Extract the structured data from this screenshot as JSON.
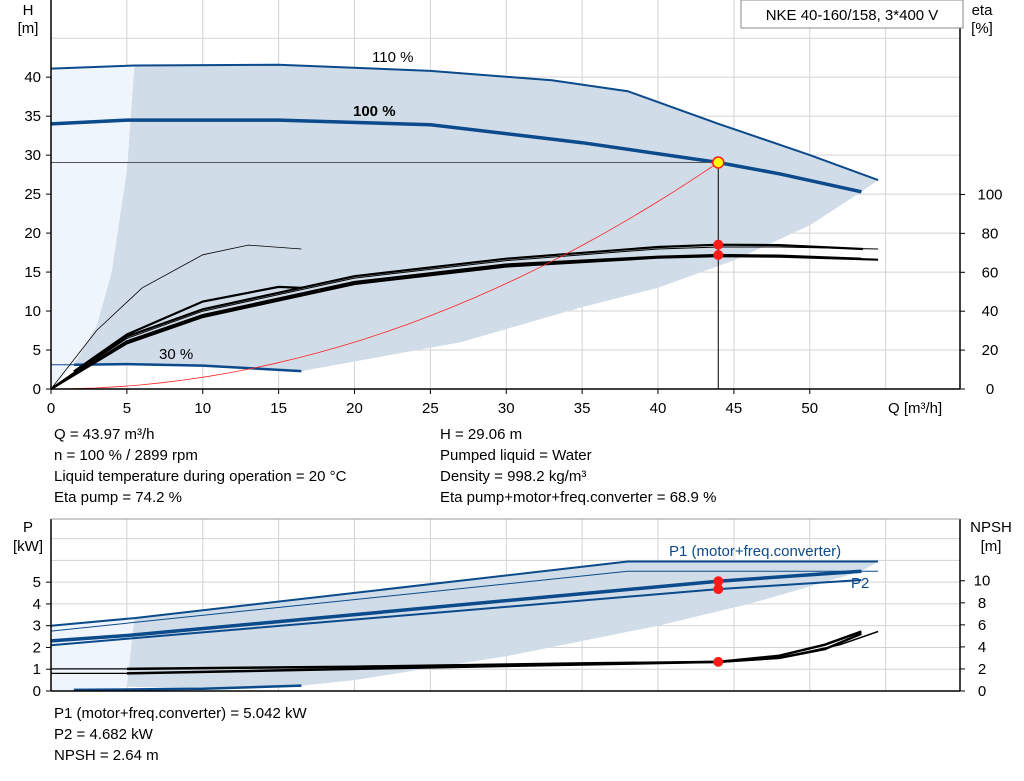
{
  "title": "NKE 40-160/158, 3*400 V",
  "colors": {
    "curve": "#0b4a8b",
    "shade": "#d0dce7",
    "light_shade": "#eef5fc",
    "system": "#ff2020",
    "point": "#ff1a1a",
    "op_fill": "#ffff00",
    "grid": "#d3d3d3"
  },
  "chart_data": [
    {
      "type": "line",
      "name": "head-efficiency",
      "xlabel": "Q [m³/h]",
      "ylabel_line1": "H",
      "ylabel_line2": "[m]",
      "y2label_line1": "eta",
      "y2label_line2": "[%]",
      "xlim": [
        0,
        59.9
      ],
      "ylim": [
        0,
        49.9
      ],
      "y2lim": [
        0,
        200
      ],
      "xticks": [
        0,
        5,
        10,
        15,
        20,
        25,
        30,
        35,
        40,
        45,
        50
      ],
      "yticks": [
        0,
        5,
        10,
        15,
        20,
        25,
        30,
        35,
        40
      ],
      "y2ticks": [
        0,
        20,
        40,
        60,
        80,
        100
      ],
      "grid": true,
      "curve_labels": {
        "c110": "110 %",
        "c100": "100 %",
        "c30": "30 %"
      },
      "head_curves": [
        {
          "label": "110 %",
          "width": 2,
          "points": [
            [
              0,
              41.1
            ],
            [
              5.5,
              41.5
            ],
            [
              15,
              41.6
            ],
            [
              25,
              40.8
            ],
            [
              33,
              39.6
            ],
            [
              38,
              38.2
            ],
            [
              44,
              34
            ],
            [
              50,
              30
            ],
            [
              54.5,
              26.8
            ]
          ]
        },
        {
          "label": "100 %",
          "width": 3.5,
          "points": [
            [
              0,
              34
            ],
            [
              5,
              34.5
            ],
            [
              15,
              34.5
            ],
            [
              25,
              33.9
            ],
            [
              35,
              31.6
            ],
            [
              43.97,
              29.06
            ],
            [
              48,
              27.6
            ],
            [
              53.4,
              25.3
            ]
          ]
        },
        {
          "label": "30 %",
          "width": 2.5,
          "points": [
            [
              1.5,
              3.1
            ],
            [
              5,
              3.2
            ],
            [
              10,
              3.0
            ],
            [
              16.5,
              2.3
            ]
          ]
        }
      ],
      "thin_edges": [
        [
          [
            0,
            41.1
          ],
          [
            5.5,
            41.5
          ]
        ],
        [
          [
            0,
            34
          ],
          [
            5,
            34.5
          ]
        ],
        [
          [
            0,
            3.1
          ],
          [
            1.5,
            3.1
          ]
        ]
      ],
      "shaded_region": [
        [
          5.5,
          41.5
        ],
        [
          15,
          41.6
        ],
        [
          25,
          40.8
        ],
        [
          33,
          39.6
        ],
        [
          38,
          38.2
        ],
        [
          44,
          34
        ],
        [
          50,
          30
        ],
        [
          54.5,
          26.8
        ],
        [
          53.4,
          25.3
        ],
        [
          50,
          21
        ],
        [
          45,
          16.5
        ],
        [
          40,
          13
        ],
        [
          35,
          10.5
        ],
        [
          27,
          6
        ],
        [
          16.5,
          2.3
        ],
        [
          10,
          3.0
        ],
        [
          1.5,
          3.1
        ],
        [
          3,
          8
        ],
        [
          4,
          15
        ],
        [
          5,
          28
        ],
        [
          5.5,
          41.5
        ]
      ],
      "light_region": [
        [
          0,
          0
        ],
        [
          0,
          41.1
        ],
        [
          5.5,
          41.5
        ],
        [
          5,
          28
        ],
        [
          4,
          15
        ],
        [
          3,
          8
        ],
        [
          1.5,
          3.1
        ],
        [
          0,
          0
        ]
      ],
      "efficiency_curves": [
        {
          "width": 2.2,
          "points": [
            [
              0,
              0
            ],
            [
              5,
              27
            ],
            [
              10,
              41
            ],
            [
              20,
              58
            ],
            [
              30,
              67
            ],
            [
              40,
              73
            ],
            [
              43.97,
              74.2
            ],
            [
              48,
              74
            ],
            [
              53.5,
              72
            ]
          ]
        },
        {
          "width": 1,
          "points": [
            [
              0,
              0
            ],
            [
              5,
              26
            ],
            [
              10,
              40
            ],
            [
              20,
              57
            ],
            [
              30,
              66
            ],
            [
              40,
              72
            ],
            [
              43.97,
              73
            ],
            [
              48,
              73
            ],
            [
              54.5,
              72
            ]
          ]
        },
        {
          "width": 2.2,
          "points": [
            [
              0,
              0
            ],
            [
              5,
              24.5
            ],
            [
              10,
              38
            ],
            [
              20,
              55
            ],
            [
              30,
              64
            ],
            [
              40,
              68
            ],
            [
              43.97,
              68.9
            ],
            [
              48,
              68.6
            ],
            [
              53.4,
              67
            ]
          ]
        },
        {
          "width": 2.2,
          "points": [
            [
              0,
              0
            ],
            [
              5,
              23.5
            ],
            [
              10,
              37
            ],
            [
              20,
              54
            ],
            [
              30,
              63
            ],
            [
              40,
              67.5
            ],
            [
              43.97,
              68.3
            ],
            [
              48,
              68
            ],
            [
              54.5,
              66.5
            ]
          ]
        },
        {
          "width": 2.2,
          "points": [
            [
              1.5,
              9
            ],
            [
              5,
              28
            ],
            [
              10,
              45
            ],
            [
              15,
              52.5
            ],
            [
              16.5,
              52
            ]
          ]
        },
        {
          "width": 0.8,
          "points": [
            [
              0,
              0
            ],
            [
              3,
              30
            ],
            [
              6,
              52
            ],
            [
              10,
              69
            ],
            [
              13,
              74
            ],
            [
              16.5,
              72
            ]
          ]
        }
      ],
      "system_curve": {
        "q_end": 43.97,
        "h_end": 29.06
      },
      "operating_point": {
        "Q": 43.97,
        "H": 29.06
      },
      "efficiency_points": [
        74.2,
        68.9
      ]
    },
    {
      "type": "line",
      "name": "power-npsh",
      "ylabel_line1": "P",
      "ylabel_line2": "[kW]",
      "y2label_line1": "NPSH",
      "y2label_line2": "[m]",
      "xlim": [
        0,
        59.9
      ],
      "ylim": [
        0,
        7.9
      ],
      "y2lim": [
        0,
        15.6
      ],
      "yticks": [
        0,
        1,
        2,
        3,
        4,
        5
      ],
      "y2ticks": [
        0,
        2,
        4,
        6,
        8,
        10
      ],
      "grid": true,
      "curve_labels": {
        "p1": "P1 (motor+freq.converter)",
        "p2": "P2"
      },
      "power_curves": [
        {
          "width": 2,
          "points": [
            [
              0,
              3.0
            ],
            [
              5.5,
              3.35
            ],
            [
              38,
              5.95
            ],
            [
              54.5,
              5.95
            ]
          ]
        },
        {
          "width": 1,
          "points": [
            [
              0,
              2.75
            ],
            [
              5.5,
              3.15
            ],
            [
              38,
              5.5
            ],
            [
              54.5,
              5.5
            ]
          ]
        },
        {
          "width": 3.5,
          "points": [
            [
              0,
              2.3
            ],
            [
              5,
              2.55
            ],
            [
              43.97,
              5.042
            ],
            [
              53.4,
              5.5
            ]
          ]
        },
        {
          "width": 2,
          "points": [
            [
              0,
              2.1
            ],
            [
              5,
              2.4
            ],
            [
              43.97,
              4.682
            ],
            [
              53.4,
              5.1
            ]
          ]
        },
        {
          "width": 2.5,
          "points": [
            [
              1.5,
              0.05
            ],
            [
              10,
              0.1
            ],
            [
              16.5,
              0.25
            ]
          ]
        }
      ],
      "shaded_region": [
        [
          5.5,
          3.35
        ],
        [
          38,
          5.95
        ],
        [
          54.5,
          5.95
        ],
        [
          53.4,
          5.5
        ],
        [
          50,
          4.8
        ],
        [
          46,
          4.0
        ],
        [
          40,
          3.0
        ],
        [
          30,
          1.6
        ],
        [
          20,
          0.5
        ],
        [
          16.5,
          0.25
        ],
        [
          10,
          0.1
        ],
        [
          5,
          0.2
        ],
        [
          5.5,
          3.35
        ]
      ],
      "light_region": [
        [
          0,
          0
        ],
        [
          0,
          3.0
        ],
        [
          5.5,
          3.35
        ],
        [
          5,
          0.2
        ],
        [
          3,
          0.05
        ],
        [
          0,
          0
        ]
      ],
      "npsh_curves": [
        {
          "width": 2.5,
          "points": [
            [
              5,
              2.0
            ],
            [
              20,
              2.2
            ],
            [
              35,
              2.5
            ],
            [
              43.97,
              2.64
            ],
            [
              48,
              3.2
            ],
            [
              51,
              4.2
            ],
            [
              53.4,
              5.4
            ]
          ]
        },
        {
          "width": 2.5,
          "points": [
            [
              5,
              1.6
            ],
            [
              20,
              2.0
            ],
            [
              35,
              2.4
            ],
            [
              43.97,
              2.64
            ],
            [
              48,
              3.0
            ],
            [
              51,
              3.8
            ],
            [
              53.4,
              5.2
            ]
          ]
        },
        {
          "width": 1.2,
          "points": [
            [
              0,
              2.0
            ],
            [
              5,
              2.0
            ]
          ]
        },
        {
          "width": 1.2,
          "points": [
            [
              0,
              1.6
            ],
            [
              5,
              1.6
            ]
          ]
        },
        {
          "width": 1.5,
          "points": [
            [
              43.97,
              2.6
            ],
            [
              48,
              3.0
            ],
            [
              52,
              4.2
            ],
            [
              54.5,
              5.4
            ]
          ]
        }
      ],
      "operating_points": {
        "P1": 5.042,
        "P2": 4.682,
        "NPSH": 2.64
      }
    }
  ],
  "info_top_left": [
    "Q = 43.97 m³/h",
    "n = 100 % / 2899 rpm",
    "Liquid temperature during operation = 20 °C",
    "Eta pump = 74.2 %"
  ],
  "info_top_right": [
    "H = 29.06 m",
    "Pumped liquid = Water",
    "Density = 998.2 kg/m³",
    "Eta pump+motor+freq.converter = 68.9 %"
  ],
  "info_bottom": [
    "P1 (motor+freq.converter) = 5.042 kW",
    "P2 = 4.682 kW",
    "NPSH = 2.64 m"
  ]
}
